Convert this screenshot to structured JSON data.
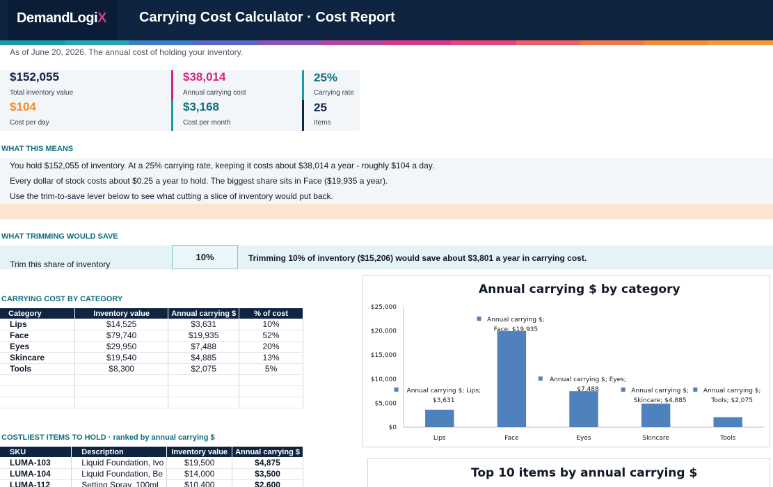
{
  "header": {
    "logo_main": "DemandLogi",
    "logo_x": "X",
    "title": "Carrying Cost Calculator · Cost Report"
  },
  "stripe_colors": [
    "#1a9aa8",
    "#2aa4b3",
    "#3d7fc0",
    "#5a67c4",
    "#8a55b8",
    "#b4489e",
    "#d63a8a",
    "#e6457a",
    "#ee5e64",
    "#f27748",
    "#f48b38",
    "#f59a3a"
  ],
  "as_of": "As of June 20, 2026. The annual cost of holding your inventory.",
  "kpis": {
    "total_value": {
      "value": "$152,055",
      "label": "Total inventory value"
    },
    "cost_per_day": {
      "value": "$104",
      "label": "Cost per day"
    },
    "annual_cost": {
      "value": "$38,014",
      "label": "Annual carrying cost"
    },
    "cost_per_month": {
      "value": "$3,168",
      "label": "Cost per month"
    },
    "carrying_rate": {
      "value": "25%",
      "label": "Carrying rate"
    },
    "items": {
      "value": "25",
      "label": "Items"
    }
  },
  "colors": {
    "navy": "#0e2440",
    "magenta": "#d6247e",
    "orange": "#f28c28",
    "teal": "#0d6e7a",
    "bar": "#4f81bd"
  },
  "what_this_means": {
    "title": "WHAT THIS MEANS",
    "lines": [
      "You hold $152,055 of inventory. At a 25% carrying rate, keeping it costs about $38,014 a year - roughly $104 a day.",
      "Every dollar of stock costs about $0.25 a year to hold. The biggest share sits in Face ($19,935 a year).",
      "Use the trim-to-save lever below to see what cutting a slice of inventory would put back."
    ]
  },
  "trimming": {
    "title": "WHAT TRIMMING WOULD SAVE",
    "label": "Trim this share of inventory",
    "value": "10%",
    "message": "Trimming 10% of inventory ($15,206) would save about $3,801 a year in carrying cost."
  },
  "category_table": {
    "title": "CARRYING COST BY CATEGORY",
    "headers": [
      "Category",
      "Inventory value",
      "Annual carrying $",
      "% of cost"
    ],
    "rows": [
      [
        "Lips",
        "$14,525",
        "$3,631",
        "10%"
      ],
      [
        "Face",
        "$79,740",
        "$19,935",
        "52%"
      ],
      [
        "Eyes",
        "$29,950",
        "$7,488",
        "20%"
      ],
      [
        "Skincare",
        "$19,540",
        "$4,885",
        "13%"
      ],
      [
        "Tools",
        "$8,300",
        "$2,075",
        "5%"
      ]
    ]
  },
  "items_table": {
    "title": "COSTLIEST ITEMS TO HOLD · ranked by annual carrying $",
    "headers": [
      "SKU",
      "Description",
      "Inventory value",
      "Annual carrying $"
    ],
    "rows": [
      [
        "LUMA-103",
        "Liquid Foundation, Ivo",
        "$19,500",
        "$4,875"
      ],
      [
        "LUMA-104",
        "Liquid Foundation, Be",
        "$14,000",
        "$3,500"
      ],
      [
        "LUMA-112",
        "Setting Spray, 100ml",
        "$10,400",
        "$2,600"
      ]
    ]
  },
  "chart_data": {
    "type": "bar",
    "title": "Annual carrying $ by category",
    "categories": [
      "Lips",
      "Face",
      "Eyes",
      "Skincare",
      "Tools"
    ],
    "series": [
      {
        "name": "Annual carrying $",
        "values": [
          3631,
          19935,
          7488,
          4885,
          2075
        ]
      }
    ],
    "data_labels": [
      [
        "Annual carrying $; Lips;",
        "$3,631"
      ],
      [
        "Annual carrying $;",
        "Face; $19,935"
      ],
      [
        "Annual carrying $; Eyes;",
        "$7,488"
      ],
      [
        "Annual carrying $;",
        "Skincare; $4,885"
      ],
      [
        "Annual carrying $;",
        "Tools; $2,075"
      ]
    ],
    "yticks": [
      "$0",
      "$5,000",
      "$10,000",
      "$15,000",
      "$20,000",
      "$25,000"
    ],
    "ylim": [
      0,
      25000
    ],
    "grid": false,
    "legend": "none"
  },
  "chart2": {
    "title": "Top 10 items by annual carrying $"
  }
}
